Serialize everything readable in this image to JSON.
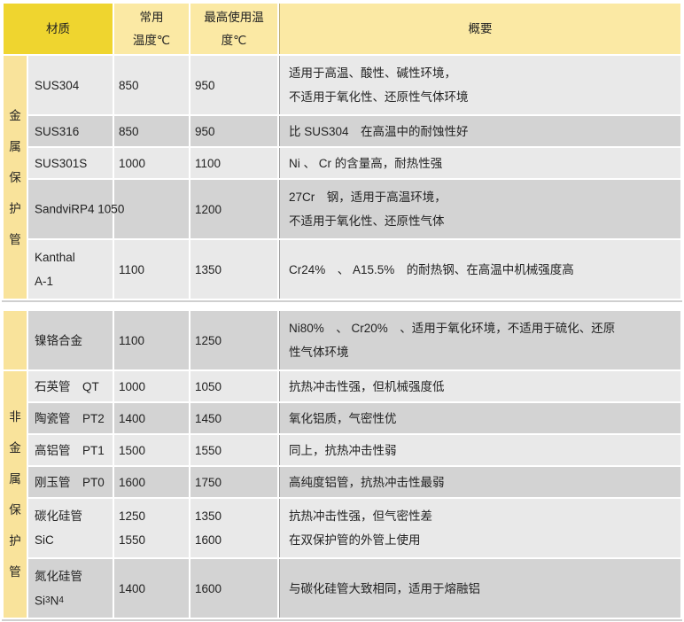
{
  "colors": {
    "header_gold": "#EFD52F",
    "header_yellow": "#FBE9A4",
    "side_yellow": "#F9E39B",
    "row_light": "#E9E9E9",
    "row_dark": "#D3D3D3",
    "summary_divider": "#9F9F9F"
  },
  "header": {
    "material": "材质",
    "common": "常用\n温度℃",
    "max": "最高使用温\n度℃",
    "summary": "概要"
  },
  "sections": [
    {
      "name": "metal-protection-tubes",
      "side_cells": [
        {
          "start": 0,
          "rows": 5,
          "label": "金属保护管"
        }
      ],
      "rows": [
        {
          "material": "SUS304",
          "common": "850",
          "max": "950",
          "summary": "适用于高温、酸性、碱性环境，\n不适用于氧化性、还原性气体环境",
          "shade": "light"
        },
        {
          "material": "SUS316",
          "common": "850",
          "max": "950",
          "summary": "比 SUS304　在高温中的耐蚀性好",
          "shade": "dark"
        },
        {
          "material": "SUS301S",
          "common": "1000",
          "max": "1100",
          "summary": "Ni 、 Cr 的含量高，耐热性强",
          "shade": "light"
        },
        {
          "material": "SandviRP4",
          "common": "1050",
          "max": "1200",
          "summary": "27Cr　钢，适用于高温环境，\n不适用于氧化性、还原性气体",
          "shade": "dark",
          "overflow": true
        },
        {
          "material": "Kanthal\nA-1",
          "common": "1100",
          "max": "1350",
          "summary": "Cr24%　、 A15.5%　的耐热钢、在高温中机械强度高",
          "shade": "light"
        }
      ]
    },
    {
      "name": "nonmetal-protection-tubes",
      "side_cells": [
        {
          "start": 0,
          "rows": 1,
          "label": ""
        },
        {
          "start": 1,
          "rows": 6,
          "label": "非金属保护管"
        }
      ],
      "rows": [
        {
          "material": "镍铬合金",
          "common": "1100",
          "max": "1250",
          "summary": "Ni80%　、 Cr20%　、适用于氧化环境，不适用于硫化、还原\n性气体环境",
          "shade": "dark"
        },
        {
          "material": "石英管　QT",
          "common": "1000",
          "max": "1050",
          "summary": "抗热冲击性强，但机械强度低",
          "shade": "light"
        },
        {
          "material": "陶瓷管　PT2",
          "common": "1400",
          "max": "1450",
          "summary": "氧化铝质，气密性优",
          "shade": "dark"
        },
        {
          "material": "高铝管　PT1",
          "common": "1500",
          "max": "1550",
          "summary": "同上，抗热冲击性弱",
          "shade": "light"
        },
        {
          "material": "刚玉管　PT0",
          "common": "1600",
          "max": "1750",
          "summary": "高纯度铝管，抗热冲击性最弱",
          "shade": "dark"
        },
        {
          "material": "碳化硅管\nSiC",
          "common": "1250\n1550",
          "max": "1350\n1600",
          "summary": "抗热冲击性强，但气密性差\n在双保护管的外管上使用",
          "shade": "light"
        },
        {
          "material": "氮化硅管\nSi3N4",
          "common": "1400",
          "max": "1600",
          "summary": "与碳化硅管大致相同，适用于熔融铝",
          "shade": "dark",
          "formula": true
        }
      ]
    }
  ]
}
